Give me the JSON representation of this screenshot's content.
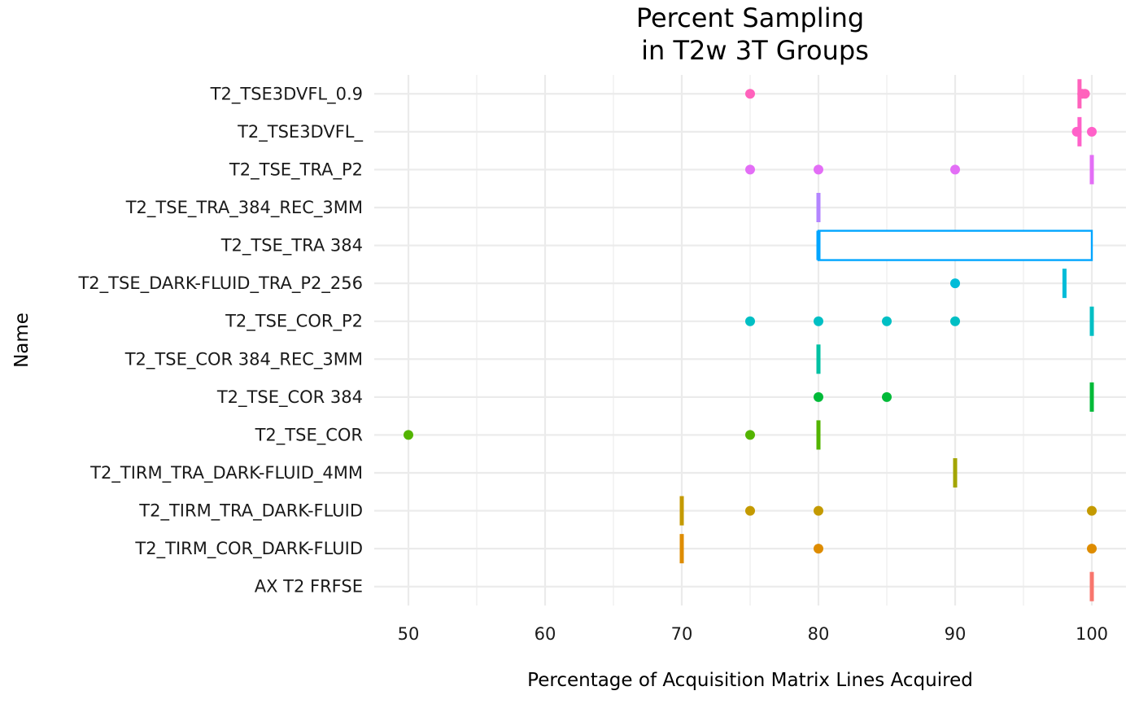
{
  "chart_data": {
    "type": "boxplot",
    "title_lines": [
      "Percent Sampling",
      "in T2w 3T Groups"
    ],
    "xlabel": "Percentage of Acquisition Matrix Lines Acquired",
    "ylabel": "Name",
    "xlim": [
      47.5,
      102.5
    ],
    "x_major_ticks": [
      50,
      60,
      70,
      80,
      90,
      100
    ],
    "x_minor_ticks": [
      55,
      65,
      75,
      85,
      95
    ],
    "grid": true,
    "legend": "none",
    "categories": [
      {
        "name": "T2_TSE3DVFL_0.9",
        "color": "#FF62BC",
        "q1": 99.1,
        "median": 99.1,
        "q3": 99.1,
        "outliers": [
          75,
          99.3,
          99.5
        ]
      },
      {
        "name": "T2_TSE3DVFL_",
        "color": "#FF61C9",
        "q1": 99.1,
        "median": 99.1,
        "q3": 99.1,
        "outliers": [
          98.9,
          100
        ]
      },
      {
        "name": "T2_TSE_TRA_P2",
        "color": "#E36EF6",
        "q1": 100,
        "median": 100,
        "q3": 100,
        "outliers": [
          75,
          80,
          90
        ]
      },
      {
        "name": "T2_TSE_TRA_384_REC_3MM",
        "color": "#B385FF",
        "q1": 80,
        "median": 80,
        "q3": 80,
        "outliers": []
      },
      {
        "name": "T2_TSE_TRA 384",
        "color": "#00A5FF",
        "q1": 80,
        "median": 80,
        "q3": 100,
        "outliers": []
      },
      {
        "name": "T2_TSE_DARK-FLUID_TRA_P2_256",
        "color": "#00BCD8",
        "q1": 98,
        "median": 98,
        "q3": 98,
        "outliers": [
          90
        ]
      },
      {
        "name": "T2_TSE_COR_P2",
        "color": "#00BFC4",
        "q1": 100,
        "median": 100,
        "q3": 100,
        "outliers": [
          75,
          80,
          85,
          90
        ]
      },
      {
        "name": "T2_TSE_COR 384_REC_3MM",
        "color": "#00C1A3",
        "q1": 80,
        "median": 80,
        "q3": 80,
        "outliers": []
      },
      {
        "name": "T2_TSE_COR 384",
        "color": "#00BA38",
        "q1": 100,
        "median": 100,
        "q3": 100,
        "outliers": [
          80,
          85
        ]
      },
      {
        "name": "T2_TSE_COR",
        "color": "#53B400",
        "q1": 80,
        "median": 80,
        "q3": 80,
        "outliers": [
          50,
          75
        ]
      },
      {
        "name": "T2_TIRM_TRA_DARK-FLUID_4MM",
        "color": "#A3A500",
        "q1": 90,
        "median": 90,
        "q3": 90,
        "outliers": []
      },
      {
        "name": "T2_TIRM_TRA_DARK-FLUID",
        "color": "#C49A00",
        "q1": 70,
        "median": 70,
        "q3": 70,
        "outliers": [
          75,
          80,
          100
        ]
      },
      {
        "name": "T2_TIRM_COR_DARK-FLUID",
        "color": "#DE8C00",
        "q1": 70,
        "median": 70,
        "q3": 70,
        "outliers": [
          80,
          100
        ]
      },
      {
        "name": "AX T2 FRFSE",
        "color": "#F8766D",
        "q1": 100,
        "median": 100,
        "q3": 100,
        "outliers": []
      }
    ]
  }
}
